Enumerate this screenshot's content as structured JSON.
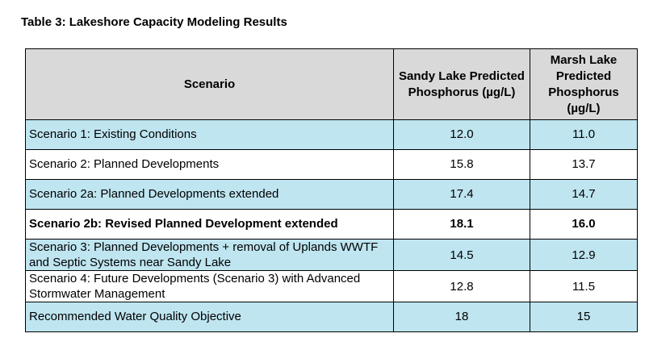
{
  "caption": "Table 3: Lakeshore Capacity Modeling Results",
  "table": {
    "headers": {
      "scenario": "Scenario",
      "sandy": "Sandy Lake Predicted Phosphorus (µg/L)",
      "marsh": "Marsh Lake Predicted Phosphorus (µg/L)"
    },
    "rows": [
      {
        "scenario": "Scenario 1: Existing Conditions",
        "sandy": "12.0",
        "marsh": "11.0"
      },
      {
        "scenario": "Scenario 2: Planned Developments",
        "sandy": "15.8",
        "marsh": "13.7"
      },
      {
        "scenario": "Scenario 2a: Planned Developments extended",
        "sandy": "17.4",
        "marsh": "14.7"
      },
      {
        "scenario": "Scenario 2b: Revised Planned Development extended",
        "sandy": "18.1",
        "marsh": "16.0"
      },
      {
        "scenario": "Scenario 3: Planned Developments + removal of Uplands WWTF and Septic Systems near Sandy Lake",
        "sandy": "14.5",
        "marsh": "12.9"
      },
      {
        "scenario": "Scenario 4: Future Developments (Scenario 3) with Advanced Stormwater Management",
        "sandy": "12.8",
        "marsh": "11.5"
      },
      {
        "scenario": "Recommended Water Quality Objective",
        "sandy": "18",
        "marsh": "15"
      }
    ]
  },
  "colors": {
    "header_fill": "#d9d9d9",
    "blue_row_fill": "#bfe5f0",
    "white_row_fill": "#ffffff",
    "border": "#000000"
  }
}
